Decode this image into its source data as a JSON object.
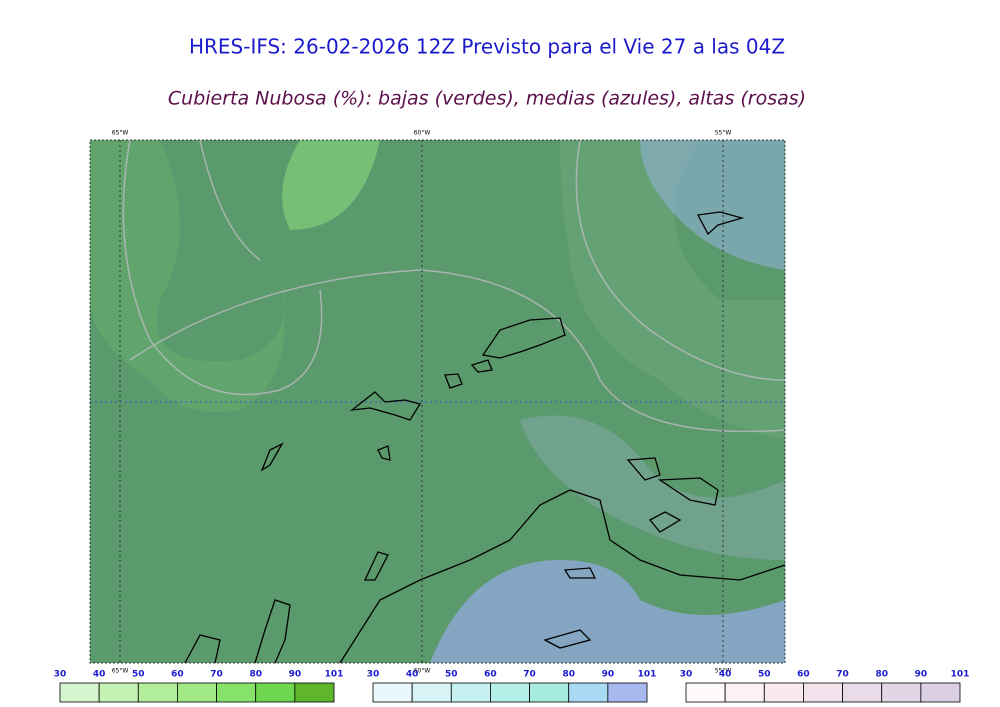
{
  "title": "HRES-IFS: 26-02-2026 12Z Previsto para el Vie 27 a las 04Z",
  "subtitle": "Cubierta Nubosa (%): bajas (verdes), medias (azules), altas (rosas)",
  "map": {
    "longitudes_top": [
      "65°W",
      "60°W",
      "55°W"
    ],
    "longitudes_bottom": [
      "65°W",
      "60°W",
      "55°W"
    ]
  },
  "colorbars": [
    {
      "ticks": [
        30,
        40,
        50,
        60,
        70,
        80,
        90,
        101
      ],
      "colors": [
        "#d5f5cf",
        "#c4f2b5",
        "#b3ee9d",
        "#a0e985",
        "#86e26a",
        "#6fd650",
        "#5fb62c"
      ]
    },
    {
      "ticks": [
        30,
        40,
        50,
        60,
        70,
        80,
        90,
        101
      ],
      "colors": [
        "#eaf7fb",
        "#d7f3f6",
        "#c5f2f1",
        "#b4f0e8",
        "#a7ecdf",
        "#a8daf4",
        "#a8b9f0"
      ]
    },
    {
      "ticks": [
        30,
        40,
        50,
        60,
        70,
        80,
        90,
        101
      ],
      "colors": [
        "#fefafb",
        "#fbf2f4",
        "#f8eaef",
        "#f2e3ec",
        "#eadbe8",
        "#e2d5e5",
        "#dacfe5"
      ]
    }
  ]
}
